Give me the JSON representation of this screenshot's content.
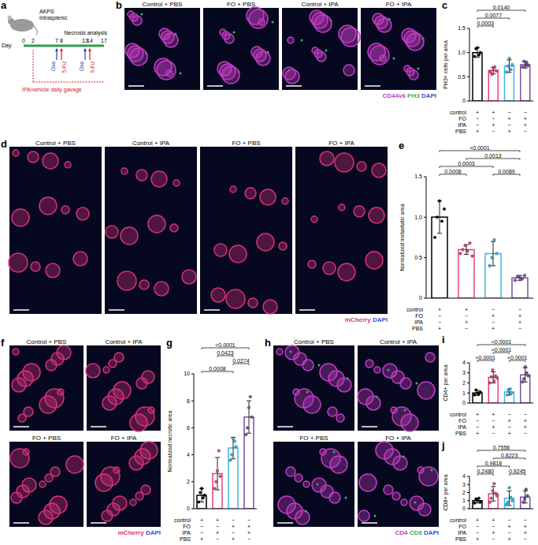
{
  "figure": {
    "schematic": {
      "letter": "a",
      "label_lines": [
        "AKPS",
        "intrasplenic"
      ],
      "day_label": "Day",
      "days": [
        0,
        2,
        7,
        8,
        13,
        14,
        17
      ],
      "treatments": [
        {
          "day": 7,
          "label": "Oxa",
          "color": "#2a3fbf"
        },
        {
          "day": 8,
          "label": "5-FU",
          "color": "#d62020"
        },
        {
          "day": 13,
          "label": "Oxa",
          "color": "#2a3fbf"
        },
        {
          "day": 14,
          "label": "5-FU",
          "color": "#d62020"
        }
      ],
      "gavage": {
        "from_day": 2,
        "label": "IPA/vehicle daily gavage",
        "color": "#d62020"
      },
      "endpoint": {
        "day": 17,
        "label": "Necrosis analysis"
      }
    },
    "images": [
      {
        "letter": "b",
        "titles": [
          "Control + PBS",
          "FO + PBS",
          "Control + IPA",
          "FO + IPA"
        ],
        "stain": [
          {
            "text": "CD44v6",
            "color": "#c43cc4"
          },
          {
            "text": "PH3",
            "color": "#2fb866"
          },
          {
            "text": "DAPI",
            "color": "#3b4fd8"
          }
        ]
      },
      {
        "letter": "d",
        "titles": [
          "Control + PBS",
          "Control + IPA",
          "FO + PBS",
          "FO + IPA"
        ],
        "stain": [
          {
            "text": "mCherry",
            "color": "#d9307a"
          },
          {
            "text": "DAPI",
            "color": "#3b4fd8"
          }
        ]
      },
      {
        "letter": "f",
        "titles": [
          "Control + PBS",
          "Control + IPA",
          "FO + PBS",
          "FO + IPA"
        ],
        "stain": [
          {
            "text": "mCherry",
            "color": "#d9307a"
          },
          {
            "text": "DAPI",
            "color": "#3b4fd8"
          }
        ]
      },
      {
        "letter": "h",
        "titles": [
          "Control + PBS",
          "Control + IPA",
          "FO + PBS",
          "FO + IPA"
        ],
        "stain": [
          {
            "text": "CD4",
            "color": "#c43cc4"
          },
          {
            "text": "CD8",
            "color": "#2fb866"
          },
          {
            "text": "DAPI",
            "color": "#3b4fd8"
          }
        ]
      }
    ]
  },
  "chart_data": [
    {
      "type": "bar",
      "letter": "c",
      "y_label": "PH3+ cells per area",
      "ylim": [
        0,
        1.5
      ],
      "yticks": [
        0,
        0.5,
        {
          "value": 1,
          "label": "1.0"
        },
        1.5
      ],
      "colors": [
        "#000000",
        "#e6417e",
        "#3ab7e6",
        "#7a4ea3"
      ],
      "values": [
        1.0,
        0.63,
        0.72,
        0.75
      ],
      "sd": [
        0.1,
        0.07,
        0.13,
        0.07
      ],
      "points": [
        [
          0.92,
          1.08,
          1.1,
          0.95,
          1.0
        ],
        [
          0.6,
          0.55,
          0.68,
          0.7,
          0.62
        ],
        [
          0.6,
          0.72,
          0.88,
          0.65,
          0.75
        ],
        [
          0.7,
          0.82,
          0.72,
          0.78,
          0.73
        ]
      ],
      "conditions": [
        {
          "label": "control",
          "signs": [
            "+",
            "+",
            "−",
            "−"
          ]
        },
        {
          "label": "FO",
          "signs": [
            "−",
            "−",
            "+",
            "+"
          ]
        },
        {
          "label": "IPA",
          "signs": [
            "−",
            "+",
            "−",
            "+"
          ]
        },
        {
          "label": "PBS",
          "signs": [
            "+",
            "−",
            "+",
            "−"
          ]
        }
      ],
      "comparisons": [
        {
          "pair": [
            0,
            1
          ],
          "p": "0.0003"
        },
        {
          "pair": [
            0,
            2
          ],
          "p": "0.0077"
        },
        {
          "pair": [
            0,
            3
          ],
          "p": "0.0140"
        }
      ]
    },
    {
      "type": "bar",
      "letter": "e",
      "y_label": "Normalized metastatic area",
      "ylim": [
        0,
        1.5
      ],
      "yticks": [
        0,
        0.5,
        {
          "value": 1,
          "label": "1.0"
        },
        1.5
      ],
      "colors": [
        "#000000",
        "#e6417e",
        "#3ab7e6",
        "#7a4ea3"
      ],
      "values": [
        1.0,
        0.6,
        0.55,
        0.25
      ],
      "sd": [
        0.2,
        0.06,
        0.15,
        0.03
      ],
      "points": [
        [
          0.75,
          1.0,
          1.2,
          0.95,
          1.1
        ],
        [
          0.55,
          0.6,
          0.65,
          0.58,
          0.68,
          0.52
        ],
        [
          0.4,
          0.5,
          0.72,
          0.55
        ],
        [
          0.22,
          0.27,
          0.25,
          0.24,
          0.28
        ]
      ],
      "conditions": [
        {
          "label": "control",
          "signs": [
            "+",
            "+",
            "−",
            "−"
          ]
        },
        {
          "label": "FO",
          "signs": [
            "−",
            "−",
            "+",
            "+"
          ]
        },
        {
          "label": "IPA",
          "signs": [
            "−",
            "+",
            "−",
            "+"
          ]
        },
        {
          "label": "PBS",
          "signs": [
            "+",
            "−",
            "+",
            "−"
          ]
        }
      ],
      "comparisons": [
        {
          "pair": [
            0,
            1
          ],
          "p": "0.0008"
        },
        {
          "pair": [
            2,
            3
          ],
          "p": "0.0089"
        },
        {
          "pair": [
            0,
            2
          ],
          "p": "0.0003"
        },
        {
          "pair": [
            1,
            3
          ],
          "p": "0.0013"
        },
        {
          "pair": [
            0,
            3
          ],
          "p": "<0.0001"
        }
      ]
    },
    {
      "type": "bar",
      "letter": "g",
      "y_label": "Normalized necrotic area",
      "ylim": [
        0,
        10
      ],
      "yticks": [
        0,
        2,
        4,
        6,
        8,
        10
      ],
      "colors": [
        "#000000",
        "#e6417e",
        "#3ab7e6",
        "#7a4ea3"
      ],
      "values": [
        1.0,
        2.6,
        4.5,
        6.8
      ],
      "sd": [
        0.5,
        1.2,
        0.8,
        1.2
      ],
      "points": [
        [
          0.5,
          1.2,
          1.5,
          0.8,
          1.0
        ],
        [
          1.5,
          2.0,
          2.8,
          4.3,
          2.4
        ],
        [
          3.6,
          4.0,
          5.2,
          5.0,
          4.6
        ],
        [
          5.5,
          6.0,
          7.5,
          8.3,
          6.8
        ]
      ],
      "conditions": [
        {
          "label": "control",
          "signs": [
            "+",
            "+",
            "−",
            "−"
          ]
        },
        {
          "label": "FO",
          "signs": [
            "−",
            "−",
            "+",
            "+"
          ]
        },
        {
          "label": "IPA",
          "signs": [
            "−",
            "+",
            "−",
            "+"
          ]
        },
        {
          "label": "PBS",
          "signs": [
            "+",
            "−",
            "+",
            "−"
          ]
        }
      ],
      "comparisons": [
        {
          "pair": [
            0,
            2
          ],
          "p": "0.0008"
        },
        {
          "pair": [
            2,
            3
          ],
          "p": "0.0274"
        },
        {
          "pair": [
            1,
            2
          ],
          "p": "0.0423"
        },
        {
          "pair": [
            0,
            3
          ],
          "p": "<0.0001"
        }
      ]
    },
    {
      "type": "bar",
      "letter": "i",
      "y_label": "CD4+ per area",
      "ylim": [
        0,
        4
      ],
      "yticks": [
        0,
        1,
        2,
        3,
        4
      ],
      "colors": [
        "#000000",
        "#e6417e",
        "#3ab7e6",
        "#7a4ea3"
      ],
      "values": [
        1.0,
        2.55,
        1.1,
        2.8
      ],
      "sd": [
        0.25,
        0.55,
        0.3,
        0.7
      ],
      "points": [
        [
          0.8,
          1.3,
          1.0,
          0.9,
          1.1
        ],
        [
          2.0,
          2.6,
          3.3,
          2.2,
          2.7,
          2.5
        ],
        [
          0.8,
          1.2,
          1.4,
          1.0
        ],
        [
          2.1,
          2.4,
          3.6,
          3.0,
          2.7
        ]
      ],
      "conditions": [
        {
          "label": "control",
          "signs": [
            "+",
            "+",
            "−",
            "−"
          ]
        },
        {
          "label": "FO",
          "signs": [
            "−",
            "−",
            "+",
            "+"
          ]
        },
        {
          "label": "IPA",
          "signs": [
            "−",
            "+",
            "−",
            "+"
          ]
        },
        {
          "label": "PBS",
          "signs": [
            "+",
            "−",
            "+",
            "−"
          ]
        }
      ],
      "comparisons": [
        {
          "pair": [
            0,
            1
          ],
          "p": "<0.0001"
        },
        {
          "pair": [
            2,
            3
          ],
          "p": "<0.0001"
        },
        {
          "pair": [
            1,
            2
          ],
          "p": "<0.0001"
        },
        {
          "pair": [
            0,
            3
          ],
          "p": "<0.0001"
        }
      ]
    },
    {
      "type": "bar",
      "letter": "j",
      "y_label": "CD8+ per area",
      "ylim": [
        0,
        4
      ],
      "yticks": [
        0,
        1,
        2,
        3,
        4
      ],
      "colors": [
        "#000000",
        "#e6417e",
        "#3ab7e6",
        "#7a4ea3"
      ],
      "values": [
        1.0,
        1.85,
        1.3,
        1.45
      ],
      "sd": [
        0.3,
        0.9,
        0.9,
        0.75
      ],
      "points": [
        [
          0.7,
          1.2,
          1.0,
          1.3,
          0.8
        ],
        [
          0.8,
          1.3,
          2.2,
          3.1,
          1.9,
          1.6
        ],
        [
          0.5,
          0.8,
          2.6,
          1.4,
          1.0
        ],
        [
          0.8,
          1.2,
          2.4,
          1.6
        ]
      ],
      "conditions": [
        {
          "label": "control",
          "signs": [
            "+",
            "+",
            "−",
            "−"
          ]
        },
        {
          "label": "FO",
          "signs": [
            "−",
            "−",
            "+",
            "+"
          ]
        },
        {
          "label": "IPA",
          "signs": [
            "−",
            "+",
            "−",
            "+"
          ]
        },
        {
          "label": "PBS",
          "signs": [
            "+",
            "−",
            "+",
            "−"
          ]
        }
      ],
      "comparisons": [
        {
          "pair": [
            0,
            1
          ],
          "p": "0.2480"
        },
        {
          "pair": [
            2,
            3
          ],
          "p": "0.9245"
        },
        {
          "pair": [
            0,
            2
          ],
          "p": "0.9818"
        },
        {
          "pair": [
            1,
            3
          ],
          "p": "0.8223"
        },
        {
          "pair": [
            0,
            3
          ],
          "p": "0.7556"
        }
      ]
    }
  ]
}
